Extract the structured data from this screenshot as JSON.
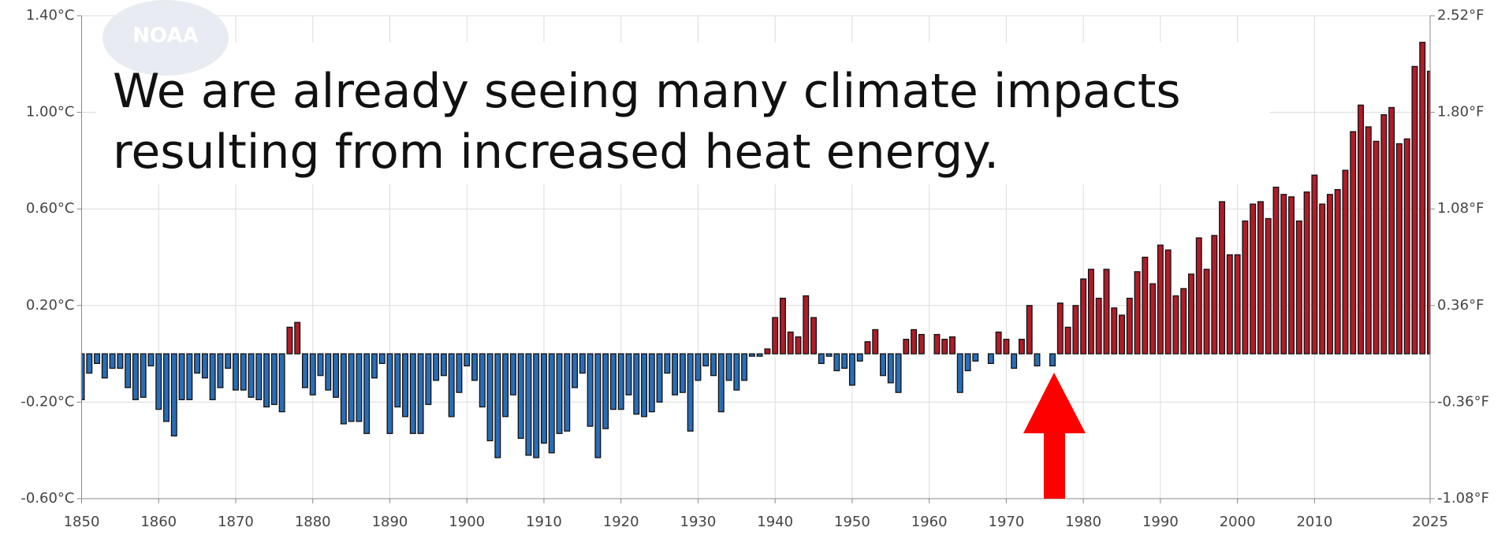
{
  "chart_data": {
    "type": "bar",
    "annotation_lines": [
      "We are already seeing many climate impacts",
      "resulting from increased heat energy."
    ],
    "logo_text": "NOAA",
    "x": [
      1850,
      1851,
      1852,
      1853,
      1854,
      1855,
      1856,
      1857,
      1858,
      1859,
      1860,
      1861,
      1862,
      1863,
      1864,
      1865,
      1866,
      1867,
      1868,
      1869,
      1870,
      1871,
      1872,
      1873,
      1874,
      1875,
      1876,
      1877,
      1878,
      1879,
      1880,
      1881,
      1882,
      1883,
      1884,
      1885,
      1886,
      1887,
      1888,
      1889,
      1890,
      1891,
      1892,
      1893,
      1894,
      1895,
      1896,
      1897,
      1898,
      1899,
      1900,
      1901,
      1902,
      1903,
      1904,
      1905,
      1906,
      1907,
      1908,
      1909,
      1910,
      1911,
      1912,
      1913,
      1914,
      1915,
      1916,
      1917,
      1918,
      1919,
      1920,
      1921,
      1922,
      1923,
      1924,
      1925,
      1926,
      1927,
      1928,
      1929,
      1930,
      1931,
      1932,
      1933,
      1934,
      1935,
      1936,
      1937,
      1938,
      1939,
      1940,
      1941,
      1942,
      1943,
      1944,
      1945,
      1946,
      1947,
      1948,
      1949,
      1950,
      1951,
      1952,
      1953,
      1954,
      1955,
      1956,
      1957,
      1958,
      1959,
      1960,
      1961,
      1962,
      1963,
      1964,
      1965,
      1966,
      1967,
      1968,
      1969,
      1970,
      1971,
      1972,
      1973,
      1974,
      1975,
      1976,
      1977,
      1978,
      1979,
      1980,
      1981,
      1982,
      1983,
      1984,
      1985,
      1986,
      1987,
      1988,
      1989,
      1990,
      1991,
      1992,
      1993,
      1994,
      1995,
      1996,
      1997,
      1998,
      1999,
      2000,
      2001,
      2002,
      2003,
      2004,
      2005,
      2006,
      2007,
      2008,
      2009,
      2010,
      2011,
      2012,
      2013,
      2014,
      2015,
      2016,
      2017,
      2018,
      2019,
      2020,
      2021,
      2022,
      2023,
      2024,
      2025
    ],
    "values": [
      -0.19,
      -0.08,
      -0.04,
      -0.1,
      -0.06,
      -0.06,
      -0.14,
      -0.19,
      -0.18,
      -0.05,
      -0.23,
      -0.28,
      -0.34,
      -0.19,
      -0.19,
      -0.08,
      -0.1,
      -0.19,
      -0.14,
      -0.06,
      -0.15,
      -0.15,
      -0.18,
      -0.19,
      -0.22,
      -0.21,
      -0.24,
      0.11,
      0.13,
      -0.14,
      -0.17,
      -0.09,
      -0.15,
      -0.18,
      -0.29,
      -0.28,
      -0.28,
      -0.33,
      -0.1,
      -0.04,
      -0.33,
      -0.22,
      -0.26,
      -0.33,
      -0.33,
      -0.21,
      -0.11,
      -0.09,
      -0.26,
      -0.16,
      -0.05,
      -0.11,
      -0.22,
      -0.36,
      -0.43,
      -0.26,
      -0.17,
      -0.35,
      -0.42,
      -0.43,
      -0.37,
      -0.41,
      -0.33,
      -0.32,
      -0.14,
      -0.08,
      -0.3,
      -0.43,
      -0.31,
      -0.23,
      -0.23,
      -0.17,
      -0.25,
      -0.26,
      -0.24,
      -0.2,
      -0.08,
      -0.17,
      -0.16,
      -0.32,
      -0.11,
      -0.05,
      -0.09,
      -0.24,
      -0.11,
      -0.15,
      -0.11,
      -0.01,
      -0.01,
      0.02,
      0.15,
      0.23,
      0.09,
      0.07,
      0.24,
      0.15,
      -0.04,
      -0.01,
      -0.07,
      -0.06,
      -0.13,
      -0.03,
      0.05,
      0.1,
      -0.09,
      -0.12,
      -0.16,
      0.06,
      0.1,
      0.08,
      0.0,
      0.08,
      0.06,
      0.07,
      -0.16,
      -0.07,
      -0.03,
      0.0,
      -0.04,
      0.09,
      0.06,
      -0.06,
      0.06,
      0.2,
      -0.05,
      0.0,
      -0.05,
      0.21,
      0.11,
      0.2,
      0.31,
      0.35,
      0.23,
      0.35,
      0.19,
      0.16,
      0.23,
      0.34,
      0.4,
      0.29,
      0.45,
      0.43,
      0.24,
      0.27,
      0.33,
      0.48,
      0.35,
      0.49,
      0.63,
      0.41,
      0.41,
      0.55,
      0.62,
      0.63,
      0.56,
      0.69,
      0.66,
      0.65,
      0.55,
      0.67,
      0.74,
      0.62,
      0.66,
      0.68,
      0.76,
      0.92,
      1.03,
      0.94,
      0.88,
      0.99,
      1.02,
      0.87,
      0.89,
      1.19,
      1.29,
      1.17
    ],
    "positive_color": "#b01c28",
    "negative_color": "#2a6db5",
    "xlim": [
      1850,
      2025
    ],
    "xticks": [
      1850,
      1860,
      1870,
      1880,
      1890,
      1900,
      1910,
      1920,
      1930,
      1940,
      1950,
      1960,
      1970,
      1980,
      1990,
      2000,
      2010,
      2025
    ],
    "ylim": [
      -0.6,
      1.4
    ],
    "yticks": [
      {
        "value": -0.6,
        "label": "-0.60°C"
      },
      {
        "value": -0.2,
        "label": "-0.20°C"
      },
      {
        "value": 0.2,
        "label": "0.20°C"
      },
      {
        "value": 0.6,
        "label": "0.60°C"
      },
      {
        "value": 1.0,
        "label": "1.00°C"
      },
      {
        "value": 1.4,
        "label": "1.40°C"
      }
    ],
    "y2lim": [
      -1.08,
      2.52
    ],
    "y2ticks": [
      {
        "value": -1.08,
        "label": "-1.08°F"
      },
      {
        "value": -0.36,
        "label": "-0.36°F"
      },
      {
        "value": 0.36,
        "label": "0.36°F"
      },
      {
        "value": 1.08,
        "label": "1.08°F"
      },
      {
        "value": 1.8,
        "label": "1.80°F"
      },
      {
        "value": 2.52,
        "label": "2.52°F"
      }
    ],
    "grid": true
  }
}
